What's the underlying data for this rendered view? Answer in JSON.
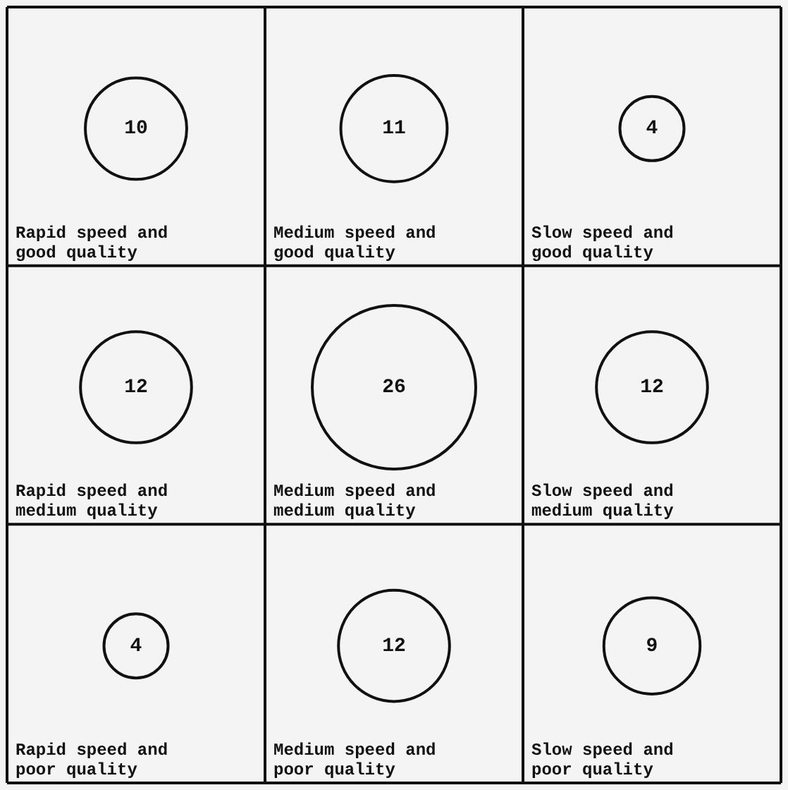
{
  "chart_data": {
    "type": "other",
    "categories": [
      "Rapid speed and good quality",
      "Medium speed and good quality",
      "Slow speed and good quality",
      "Rapid speed and medium quality",
      "Medium speed and medium quality",
      "Slow speed and medium quality",
      "Rapid speed and poor quality",
      "Medium speed and poor quality",
      "Slow speed and poor quality"
    ],
    "values": [
      10,
      11,
      4,
      12,
      26,
      12,
      4,
      12,
      9
    ],
    "data_labels": true
  }
}
